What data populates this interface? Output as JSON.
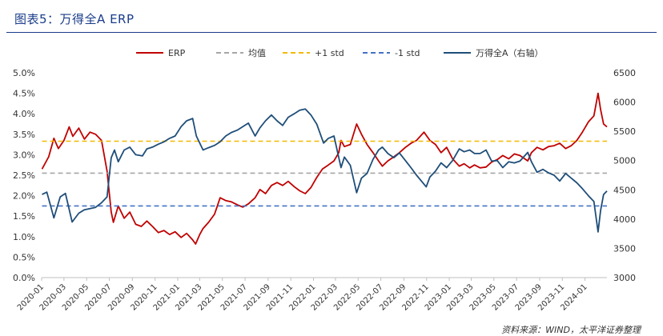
{
  "header": {
    "title": "图表5：万得全A ERP"
  },
  "source": "资料来源：WIND，太平洋证券整理",
  "colors": {
    "erp": "#c00000",
    "mean": "#a6a6a6",
    "plus1": "#f2b800",
    "minus1": "#4472c4",
    "index": "#1f4e79",
    "title": "#1a3c8a"
  },
  "chart_data": {
    "type": "line",
    "legend_position": "top",
    "y_left": {
      "ylim": [
        0,
        0.05
      ],
      "ticks": [
        "0.0%",
        "0.5%",
        "1.0%",
        "1.5%",
        "2.0%",
        "2.5%",
        "3.0%",
        "3.5%",
        "4.0%",
        "4.5%",
        "5.0%"
      ]
    },
    "y_right": {
      "ylim": [
        3000,
        6500
      ],
      "ticks": [
        "3000",
        "3500",
        "4000",
        "4500",
        "5000",
        "5500",
        "6000",
        "6500"
      ]
    },
    "x_ticks": [
      "2020-01",
      "2020-03",
      "2020-05",
      "2020-07",
      "2020-09",
      "2020-11",
      "2021-01",
      "2021-03",
      "2021-05",
      "2021-07",
      "2021-09",
      "2021-11",
      "2022-01",
      "2022-03",
      "2022-05",
      "2022-07",
      "2022-09",
      "2022-11",
      "2023-01",
      "2023-03",
      "2023-05",
      "2023-07",
      "2023-09",
      "2023-11",
      "2024-01"
    ],
    "x_start": "2020-01-01",
    "x_end": "2024-02-29",
    "series": [
      {
        "name": "ERP",
        "key": "erp",
        "axis": "left",
        "style": "solid",
        "points": [
          [
            "2020-01-02",
            0.0265
          ],
          [
            "2020-01-20",
            0.0295
          ],
          [
            "2020-02-03",
            0.034
          ],
          [
            "2020-02-15",
            0.0315
          ],
          [
            "2020-03-01",
            0.0335
          ],
          [
            "2020-03-15",
            0.0368
          ],
          [
            "2020-03-25",
            0.0345
          ],
          [
            "2020-04-10",
            0.0365
          ],
          [
            "2020-04-25",
            0.0338
          ],
          [
            "2020-05-10",
            0.0355
          ],
          [
            "2020-05-25",
            0.035
          ],
          [
            "2020-06-10",
            0.0335
          ],
          [
            "2020-06-25",
            0.026
          ],
          [
            "2020-07-06",
            0.016
          ],
          [
            "2020-07-12",
            0.0135
          ],
          [
            "2020-07-25",
            0.0175
          ],
          [
            "2020-08-10",
            0.0145
          ],
          [
            "2020-08-25",
            0.016
          ],
          [
            "2020-09-10",
            0.013
          ],
          [
            "2020-09-25",
            0.0125
          ],
          [
            "2020-10-10",
            0.0138
          ],
          [
            "2020-10-25",
            0.0125
          ],
          [
            "2020-11-10",
            0.011
          ],
          [
            "2020-11-25",
            0.0115
          ],
          [
            "2020-12-10",
            0.0105
          ],
          [
            "2020-12-25",
            0.0112
          ],
          [
            "2021-01-10",
            0.0098
          ],
          [
            "2021-01-25",
            0.0108
          ],
          [
            "2021-02-10",
            0.0092
          ],
          [
            "2021-02-18",
            0.0082
          ],
          [
            "2021-03-01",
            0.0105
          ],
          [
            "2021-03-10",
            0.012
          ],
          [
            "2021-03-25",
            0.0135
          ],
          [
            "2021-04-10",
            0.0155
          ],
          [
            "2021-04-25",
            0.0195
          ],
          [
            "2021-05-10",
            0.0188
          ],
          [
            "2021-05-25",
            0.0185
          ],
          [
            "2021-06-10",
            0.0178
          ],
          [
            "2021-06-25",
            0.0172
          ],
          [
            "2021-07-10",
            0.018
          ],
          [
            "2021-07-28",
            0.0195
          ],
          [
            "2021-08-10",
            0.0215
          ],
          [
            "2021-08-25",
            0.0205
          ],
          [
            "2021-09-10",
            0.0225
          ],
          [
            "2021-09-25",
            0.0232
          ],
          [
            "2021-10-10",
            0.0225
          ],
          [
            "2021-10-25",
            0.0235
          ],
          [
            "2021-11-10",
            0.0222
          ],
          [
            "2021-11-25",
            0.0212
          ],
          [
            "2021-12-10",
            0.0205
          ],
          [
            "2021-12-25",
            0.022
          ],
          [
            "2022-01-10",
            0.0245
          ],
          [
            "2022-01-25",
            0.0265
          ],
          [
            "2022-02-10",
            0.0275
          ],
          [
            "2022-02-25",
            0.0285
          ],
          [
            "2022-03-10",
            0.0305
          ],
          [
            "2022-03-16",
            0.0335
          ],
          [
            "2022-03-25",
            0.032
          ],
          [
            "2022-04-10",
            0.0325
          ],
          [
            "2022-04-27",
            0.0375
          ],
          [
            "2022-05-10",
            0.035
          ],
          [
            "2022-05-25",
            0.0325
          ],
          [
            "2022-06-10",
            0.0305
          ],
          [
            "2022-06-25",
            0.0285
          ],
          [
            "2022-07-05",
            0.0272
          ],
          [
            "2022-07-20",
            0.0285
          ],
          [
            "2022-08-05",
            0.0295
          ],
          [
            "2022-08-20",
            0.0305
          ],
          [
            "2022-09-05",
            0.0318
          ],
          [
            "2022-09-20",
            0.0328
          ],
          [
            "2022-10-05",
            0.0335
          ],
          [
            "2022-10-25",
            0.0355
          ],
          [
            "2022-11-10",
            0.0335
          ],
          [
            "2022-11-25",
            0.0325
          ],
          [
            "2022-12-10",
            0.0305
          ],
          [
            "2022-12-25",
            0.0318
          ],
          [
            "2023-01-10",
            0.029
          ],
          [
            "2023-01-28",
            0.0272
          ],
          [
            "2023-02-10",
            0.0278
          ],
          [
            "2023-02-25",
            0.0268
          ],
          [
            "2023-03-10",
            0.0275
          ],
          [
            "2023-03-25",
            0.0268
          ],
          [
            "2023-04-10",
            0.027
          ],
          [
            "2023-04-25",
            0.0282
          ],
          [
            "2023-05-10",
            0.0288
          ],
          [
            "2023-05-25",
            0.0298
          ],
          [
            "2023-06-10",
            0.029
          ],
          [
            "2023-06-25",
            0.0302
          ],
          [
            "2023-07-10",
            0.0298
          ],
          [
            "2023-07-31",
            0.0285
          ],
          [
            "2023-08-10",
            0.0305
          ],
          [
            "2023-08-25",
            0.0318
          ],
          [
            "2023-09-10",
            0.0312
          ],
          [
            "2023-09-25",
            0.032
          ],
          [
            "2023-10-10",
            0.0322
          ],
          [
            "2023-10-25",
            0.0328
          ],
          [
            "2023-11-10",
            0.0315
          ],
          [
            "2023-11-25",
            0.0322
          ],
          [
            "2023-12-10",
            0.0335
          ],
          [
            "2023-12-25",
            0.0355
          ],
          [
            "2024-01-10",
            0.038
          ],
          [
            "2024-01-25",
            0.0395
          ],
          [
            "2024-02-05",
            0.045
          ],
          [
            "2024-02-12",
            0.041
          ],
          [
            "2024-02-20",
            0.0375
          ],
          [
            "2024-02-29",
            0.0368
          ]
        ]
      },
      {
        "name": "均值",
        "key": "mean",
        "axis": "left",
        "style": "dashed",
        "points": [
          [
            "2020-01-02",
            0.0255
          ],
          [
            "2024-02-29",
            0.0255
          ]
        ]
      },
      {
        "name": "+1 std",
        "key": "plus1",
        "axis": "left",
        "style": "dashed",
        "points": [
          [
            "2020-01-02",
            0.0333
          ],
          [
            "2024-02-29",
            0.0333
          ]
        ]
      },
      {
        "name": "-1 std",
        "key": "minus1",
        "axis": "left",
        "style": "dashed",
        "points": [
          [
            "2020-01-02",
            0.0175
          ],
          [
            "2024-02-29",
            0.0175
          ]
        ]
      },
      {
        "name": "万得全A（右轴）",
        "key": "index",
        "axis": "right",
        "style": "solid",
        "points": [
          [
            "2020-01-02",
            4420
          ],
          [
            "2020-01-15",
            4460
          ],
          [
            "2020-02-03",
            4020
          ],
          [
            "2020-02-20",
            4380
          ],
          [
            "2020-03-05",
            4440
          ],
          [
            "2020-03-23",
            3950
          ],
          [
            "2020-04-10",
            4100
          ],
          [
            "2020-04-25",
            4160
          ],
          [
            "2020-05-10",
            4180
          ],
          [
            "2020-05-25",
            4200
          ],
          [
            "2020-06-10",
            4280
          ],
          [
            "2020-06-25",
            4380
          ],
          [
            "2020-07-06",
            5050
          ],
          [
            "2020-07-15",
            5180
          ],
          [
            "2020-07-25",
            4980
          ],
          [
            "2020-08-10",
            5180
          ],
          [
            "2020-08-25",
            5230
          ],
          [
            "2020-09-10",
            5100
          ],
          [
            "2020-09-28",
            5080
          ],
          [
            "2020-10-10",
            5200
          ],
          [
            "2020-10-25",
            5230
          ],
          [
            "2020-11-10",
            5280
          ],
          [
            "2020-11-25",
            5320
          ],
          [
            "2020-12-10",
            5380
          ],
          [
            "2020-12-25",
            5420
          ],
          [
            "2021-01-10",
            5580
          ],
          [
            "2021-01-25",
            5680
          ],
          [
            "2021-02-10",
            5720
          ],
          [
            "2021-02-20",
            5420
          ],
          [
            "2021-03-10",
            5180
          ],
          [
            "2021-03-25",
            5220
          ],
          [
            "2021-04-10",
            5260
          ],
          [
            "2021-04-25",
            5320
          ],
          [
            "2021-05-10",
            5420
          ],
          [
            "2021-05-25",
            5480
          ],
          [
            "2021-06-10",
            5520
          ],
          [
            "2021-06-25",
            5580
          ],
          [
            "2021-07-10",
            5640
          ],
          [
            "2021-07-28",
            5420
          ],
          [
            "2021-08-10",
            5560
          ],
          [
            "2021-08-25",
            5680
          ],
          [
            "2021-09-10",
            5780
          ],
          [
            "2021-09-25",
            5680
          ],
          [
            "2021-10-10",
            5600
          ],
          [
            "2021-10-25",
            5740
          ],
          [
            "2021-11-10",
            5800
          ],
          [
            "2021-11-25",
            5860
          ],
          [
            "2021-12-10",
            5880
          ],
          [
            "2021-12-25",
            5780
          ],
          [
            "2022-01-10",
            5620
          ],
          [
            "2022-01-28",
            5300
          ],
          [
            "2022-02-10",
            5380
          ],
          [
            "2022-02-25",
            5420
          ],
          [
            "2022-03-10",
            5050
          ],
          [
            "2022-03-16",
            4880
          ],
          [
            "2022-03-25",
            5060
          ],
          [
            "2022-04-10",
            4920
          ],
          [
            "2022-04-27",
            4450
          ],
          [
            "2022-05-10",
            4700
          ],
          [
            "2022-05-25",
            4780
          ],
          [
            "2022-06-10",
            5020
          ],
          [
            "2022-06-25",
            5180
          ],
          [
            "2022-07-05",
            5230
          ],
          [
            "2022-07-20",
            5120
          ],
          [
            "2022-08-05",
            5050
          ],
          [
            "2022-08-20",
            5130
          ],
          [
            "2022-09-05",
            5000
          ],
          [
            "2022-09-20",
            4880
          ],
          [
            "2022-10-05",
            4750
          ],
          [
            "2022-10-31",
            4550
          ],
          [
            "2022-11-10",
            4720
          ],
          [
            "2022-11-25",
            4820
          ],
          [
            "2022-12-10",
            4960
          ],
          [
            "2022-12-25",
            4880
          ],
          [
            "2023-01-10",
            5000
          ],
          [
            "2023-01-28",
            5200
          ],
          [
            "2023-02-10",
            5150
          ],
          [
            "2023-02-25",
            5180
          ],
          [
            "2023-03-10",
            5120
          ],
          [
            "2023-03-25",
            5120
          ],
          [
            "2023-04-10",
            5180
          ],
          [
            "2023-04-25",
            4990
          ],
          [
            "2023-05-10",
            5000
          ],
          [
            "2023-05-25",
            4880
          ],
          [
            "2023-06-10",
            4980
          ],
          [
            "2023-06-25",
            4960
          ],
          [
            "2023-07-10",
            4990
          ],
          [
            "2023-07-31",
            5140
          ],
          [
            "2023-08-10",
            4980
          ],
          [
            "2023-08-25",
            4800
          ],
          [
            "2023-09-10",
            4850
          ],
          [
            "2023-09-25",
            4790
          ],
          [
            "2023-10-10",
            4750
          ],
          [
            "2023-10-25",
            4650
          ],
          [
            "2023-11-10",
            4780
          ],
          [
            "2023-11-25",
            4700
          ],
          [
            "2023-12-10",
            4620
          ],
          [
            "2023-12-25",
            4520
          ],
          [
            "2024-01-10",
            4400
          ],
          [
            "2024-01-25",
            4300
          ],
          [
            "2024-02-05",
            3780
          ],
          [
            "2024-02-12",
            4150
          ],
          [
            "2024-02-20",
            4420
          ],
          [
            "2024-02-29",
            4480
          ]
        ]
      }
    ]
  }
}
